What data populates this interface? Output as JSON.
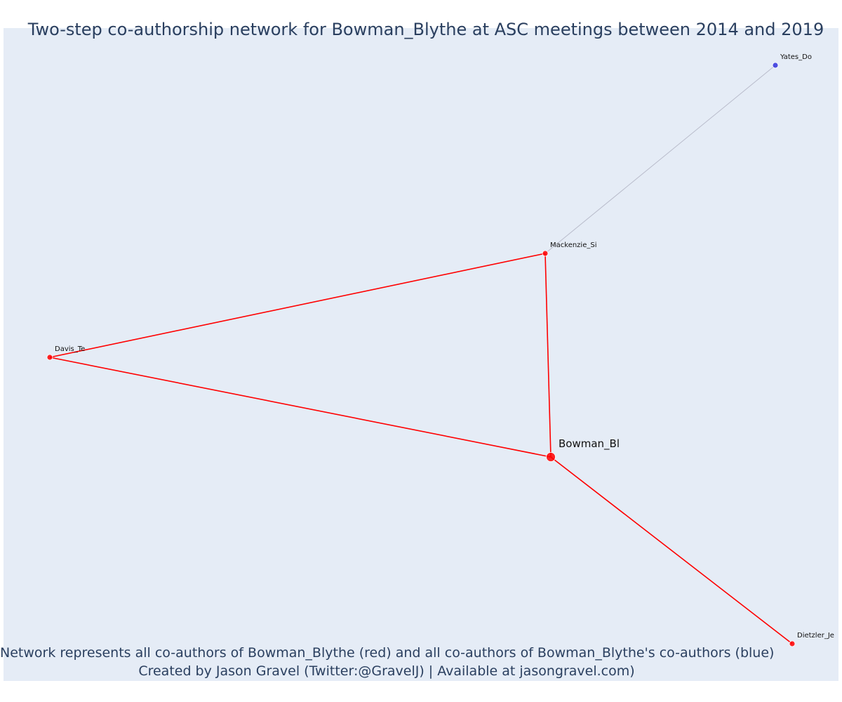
{
  "title": "Two-step co-authorship network for Bowman_Blythe at ASC meetings between 2014 and 2019",
  "caption": {
    "line1": "Network represents all co-authors of Bowman_Blythe (red) and all co-authors of Bowman_Blythe's co-authors (blue)",
    "line2": "Created by Jason Gravel (Twitter:@GravelJ) | Available at jasongravel.com)"
  },
  "colors": {
    "background": "#e5ecf6",
    "first_degree": "#ff0000",
    "second_degree": "#3333dd",
    "second_edge": "#b9bccb",
    "text": "#2a3f5f"
  },
  "nodes": [
    {
      "id": "Bowman_Bl",
      "label": "Bowman_Bl",
      "group": "focal"
    },
    {
      "id": "Mackenzie_Si",
      "label": "Mackenzie_Si",
      "group": "first"
    },
    {
      "id": "Davis_Te",
      "label": "Davis_Te",
      "group": "first"
    },
    {
      "id": "Dietzler_Je",
      "label": "Dietzler_Je",
      "group": "first"
    },
    {
      "id": "Yates_Do",
      "label": "Yates_Do",
      "group": "second"
    }
  ],
  "edges": [
    {
      "source": "Bowman_Bl",
      "target": "Mackenzie_Si",
      "type": "first"
    },
    {
      "source": "Bowman_Bl",
      "target": "Davis_Te",
      "type": "first"
    },
    {
      "source": "Bowman_Bl",
      "target": "Dietzler_Je",
      "type": "first"
    },
    {
      "source": "Davis_Te",
      "target": "Mackenzie_Si",
      "type": "first"
    },
    {
      "source": "Mackenzie_Si",
      "target": "Yates_Do",
      "type": "second"
    }
  ]
}
